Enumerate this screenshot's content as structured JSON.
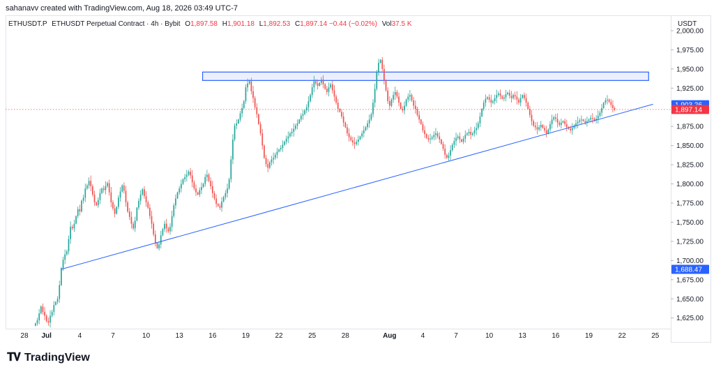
{
  "header": {
    "text": "sahanavv created with TradingView.com, Aug 18, 2026 03:49 UTC-7"
  },
  "legend": {
    "symbol": "ETHUSDT.P",
    "description": "ETHUSDT Perpetual Contract · 4h · Bybit",
    "open_label": "O",
    "open": "1,897.58",
    "high_label": "H",
    "high": "1,901.18",
    "low_label": "L",
    "low": "1,892.53",
    "close_label": "C",
    "close": "1,897.14",
    "change": "−0.44 (−0.02%)",
    "vol_label": "Vol",
    "vol": "37.5 K"
  },
  "currency": "USDT",
  "colors": {
    "up": "#26a69a",
    "down": "#ef5350",
    "line": "#2962ff",
    "box_fill": "#dfe4fb",
    "box_stroke": "#2962ff",
    "blue_tag": "#2962ff",
    "red_tag": "#f23645"
  },
  "chart_data": {
    "type": "candlestick",
    "title": "ETHUSDT Perpetual Contract · 4h · Bybit",
    "ylim": [
      1612,
      2020
    ],
    "y_ticks": [
      1625,
      1650,
      1675,
      1700,
      1725,
      1750,
      1775,
      1800,
      1825,
      1850,
      1875,
      1900,
      1925,
      1950,
      1975,
      2000
    ],
    "y_tick_labels": [
      "1,625.00",
      "1,650.00",
      "1,675.00",
      "1,700.00",
      "1,725.00",
      "1,750.00",
      "1,775.00",
      "1,800.00",
      "1,825.00",
      "1,850.00",
      "1,875.00",
      "1,900.00",
      "1,925.00",
      "1,950.00",
      "1,975.00",
      "2,000.00"
    ],
    "x_ticks": [
      {
        "label": "28",
        "day": 28
      },
      {
        "label": "Jul",
        "day": 30
      },
      {
        "label": "4",
        "day": 33
      },
      {
        "label": "7",
        "day": 36
      },
      {
        "label": "10",
        "day": 39
      },
      {
        "label": "13",
        "day": 42
      },
      {
        "label": "16",
        "day": 45
      },
      {
        "label": "19",
        "day": 48
      },
      {
        "label": "22",
        "day": 51
      },
      {
        "label": "25",
        "day": 54
      },
      {
        "label": "28",
        "day": 57
      },
      {
        "label": "Aug",
        "day": 61
      },
      {
        "label": "4",
        "day": 64
      },
      {
        "label": "7",
        "day": 67
      },
      {
        "label": "10",
        "day": 70
      },
      {
        "label": "13",
        "day": 73
      },
      {
        "label": "16",
        "day": 76
      },
      {
        "label": "19",
        "day": 79
      },
      {
        "label": "22",
        "day": 82
      },
      {
        "label": "25",
        "day": 85
      }
    ],
    "xlim": [
      26.3,
      86.4
    ],
    "candle_start_day": 29.0,
    "candles_per_day": 6,
    "closes": [
      1618,
      1622,
      1631,
      1640,
      1633,
      1628,
      1621,
      1619,
      1628,
      1633,
      1642,
      1646,
      1650,
      1668,
      1690,
      1701,
      1708,
      1712,
      1728,
      1744,
      1742,
      1748,
      1758,
      1767,
      1764,
      1778,
      1782,
      1794,
      1798,
      1804,
      1797,
      1786,
      1776,
      1772,
      1779,
      1788,
      1794,
      1792,
      1797,
      1801,
      1789,
      1776,
      1768,
      1761,
      1770,
      1782,
      1790,
      1798,
      1791,
      1776,
      1764,
      1757,
      1748,
      1742,
      1752,
      1769,
      1778,
      1786,
      1793,
      1784,
      1776,
      1769,
      1758,
      1748,
      1734,
      1723,
      1716,
      1721,
      1733,
      1741,
      1748,
      1742,
      1738,
      1744,
      1758,
      1772,
      1781,
      1789,
      1794,
      1800,
      1806,
      1809,
      1812,
      1816,
      1811,
      1802,
      1794,
      1789,
      1786,
      1792,
      1796,
      1800,
      1809,
      1812,
      1804,
      1797,
      1788,
      1781,
      1774,
      1771,
      1769,
      1777,
      1783,
      1788,
      1794,
      1806,
      1832,
      1858,
      1876,
      1879,
      1884,
      1892,
      1899,
      1908,
      1926,
      1931,
      1934,
      1921,
      1912,
      1900,
      1891,
      1878,
      1866,
      1850,
      1834,
      1826,
      1821,
      1828,
      1832,
      1834,
      1838,
      1842,
      1845,
      1847,
      1851,
      1855,
      1859,
      1862,
      1866,
      1868,
      1872,
      1876,
      1879,
      1884,
      1889,
      1891,
      1896,
      1900,
      1908,
      1916,
      1926,
      1934,
      1931,
      1928,
      1932,
      1936,
      1930,
      1924,
      1920,
      1926,
      1930,
      1922,
      1914,
      1906,
      1898,
      1894,
      1888,
      1880,
      1874,
      1866,
      1861,
      1857,
      1854,
      1852,
      1855,
      1858,
      1862,
      1866,
      1870,
      1874,
      1879,
      1884,
      1891,
      1906,
      1924,
      1946,
      1958,
      1962,
      1950,
      1935,
      1922,
      1908,
      1902,
      1910,
      1916,
      1920,
      1914,
      1906,
      1898,
      1896,
      1902,
      1910,
      1914,
      1916,
      1909,
      1902,
      1898,
      1890,
      1884,
      1878,
      1870,
      1865,
      1860,
      1858,
      1859,
      1861,
      1864,
      1866,
      1862,
      1858,
      1852,
      1846,
      1838,
      1834,
      1837,
      1844,
      1851,
      1856,
      1860,
      1862,
      1858,
      1855,
      1859,
      1864,
      1866,
      1868,
      1864,
      1866,
      1870,
      1873,
      1879,
      1888,
      1898,
      1906,
      1911,
      1913,
      1910,
      1906,
      1908,
      1912,
      1916,
      1918,
      1915,
      1911,
      1913,
      1917,
      1919,
      1915,
      1912,
      1916,
      1914,
      1910,
      1906,
      1912,
      1916,
      1912,
      1906,
      1898,
      1890,
      1882,
      1876,
      1874,
      1871,
      1874,
      1877,
      1873,
      1870,
      1866,
      1871,
      1878,
      1884,
      1887,
      1885,
      1880,
      1877,
      1880,
      1882,
      1878,
      1874,
      1872,
      1870,
      1873,
      1876,
      1879,
      1881,
      1883,
      1884,
      1882,
      1880,
      1882,
      1884,
      1886,
      1885,
      1883,
      1885,
      1889,
      1893,
      1899,
      1906,
      1909,
      1910,
      1907,
      1903,
      1899,
      1897
    ]
  },
  "price_labels": [
    {
      "id": "upper",
      "text": "1,903.26",
      "value": 1903.26,
      "color": "blue"
    },
    {
      "id": "last",
      "text": "1,897.14",
      "value": 1897.14,
      "color": "red"
    },
    {
      "id": "lower",
      "text": "1,688.47",
      "value": 1688.47,
      "color": "blue"
    }
  ],
  "drawings": {
    "trendline": {
      "from": {
        "day": 31.3,
        "price": 1688.47
      },
      "to": {
        "day": 84.8,
        "price": 1904
      }
    },
    "resistance_box": {
      "from_day": 44.1,
      "to_day": 84.4,
      "low": 1935,
      "high": 1946
    }
  },
  "brand": {
    "name": "TradingView"
  }
}
